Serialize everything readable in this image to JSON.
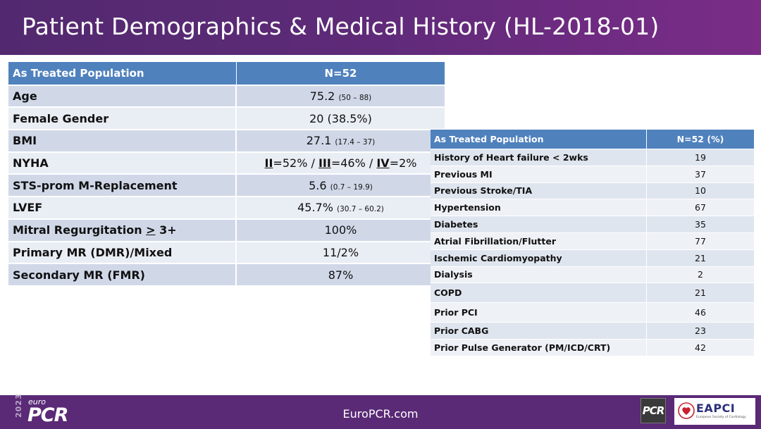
{
  "title": "Patient Demographics & Medical History (HL-2018-01)",
  "table1": {
    "header": [
      "As Treated Population",
      "N=52"
    ],
    "rows": [
      {
        "label": "Age",
        "value": "75.2",
        "range": "(50 – 88)"
      },
      {
        "label": "Female Gender",
        "value": "20 (38.5%)"
      },
      {
        "label": "BMI",
        "value": "27.1",
        "range": "(17.4 – 37)"
      },
      {
        "label": "NYHA",
        "nyha": {
          "II": "II",
          "II_val": "=52% / ",
          "III": "III",
          "III_val": "=46% / ",
          "IV": "IV",
          "IV_val": "=2%"
        }
      },
      {
        "label": "STS-prom M-Replacement",
        "value": "5.6",
        "range": "(0.7 – 19.9)"
      },
      {
        "label": "LVEF",
        "value": "45.7%",
        "range": "(30.7 – 60.2)"
      },
      {
        "label_pre": "Mitral Regurgitation ",
        "label_ge": ">",
        "label_post": " 3+",
        "value": "100%"
      },
      {
        "label": "Primary MR (DMR)/Mixed",
        "value": "11/2%"
      },
      {
        "label": "Secondary MR (FMR)",
        "value": "87%"
      }
    ]
  },
  "table2": {
    "header": [
      "As Treated Population",
      "N=52 (%)"
    ],
    "rows": [
      {
        "label": "History of Heart failure  < 2wks",
        "value": "19"
      },
      {
        "label": "Previous MI",
        "value": "37"
      },
      {
        "label": "Previous Stroke/TIA",
        "value": "10"
      },
      {
        "label": "Hypertension",
        "value": "67"
      },
      {
        "label": "Diabetes",
        "value": "35"
      },
      {
        "label": "Atrial Fibrillation/Flutter",
        "value": "77"
      },
      {
        "label": "Ischemic Cardiomyopathy",
        "value": "21"
      },
      {
        "label": "Dialysis",
        "value": "2"
      },
      {
        "label": "COPD",
        "value": "21"
      },
      {
        "label": "Prior PCI",
        "value": "46"
      },
      {
        "label": "Prior CABG",
        "value": "23"
      },
      {
        "label": "Prior Pulse Generator (PM/ICD/CRT)",
        "value": "42"
      }
    ]
  },
  "footer": {
    "url": "EuroPCR.com",
    "year": "2023",
    "euro": "euro",
    "pcr": "PCR",
    "pcr_badge": "PCR",
    "eapci": "EAPCI",
    "eapci_sub": "European Society of Cardiology"
  },
  "colors": {
    "header_bg": "#5d2a78",
    "table_header": "#4f81bd",
    "row_dark": "#d0d8e8",
    "row_light": "#e9edf4",
    "footer_bg": "#5a2a76"
  }
}
